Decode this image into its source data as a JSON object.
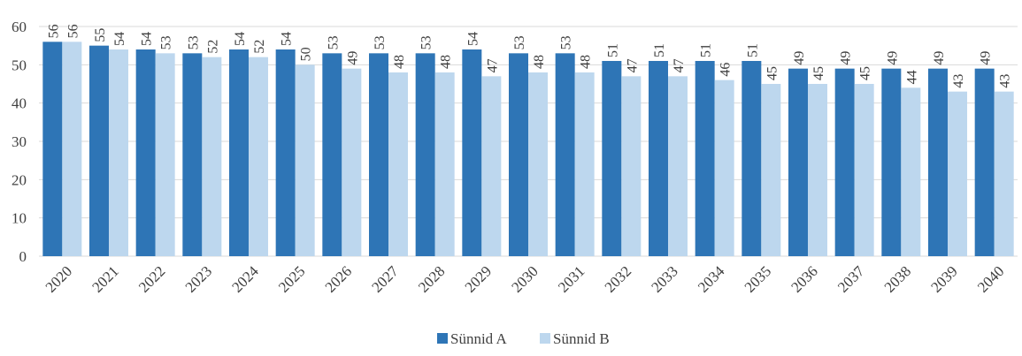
{
  "chart_data": {
    "type": "bar",
    "categories": [
      "2020",
      "2021",
      "2022",
      "2023",
      "2024",
      "2025",
      "2026",
      "2027",
      "2028",
      "2029",
      "2030",
      "2031",
      "2032",
      "2033",
      "2034",
      "2035",
      "2036",
      "2037",
      "2038",
      "2039",
      "2040"
    ],
    "series": [
      {
        "name": "Sünnid A",
        "color": "#2e75b6",
        "values": [
          56,
          55,
          54,
          53,
          54,
          54,
          53,
          53,
          53,
          54,
          53,
          53,
          51,
          51,
          51,
          51,
          49,
          49,
          49,
          49,
          49
        ]
      },
      {
        "name": "Sünnid B",
        "color": "#bdd7ee",
        "values": [
          56,
          54,
          53,
          52,
          52,
          50,
          49,
          48,
          48,
          47,
          48,
          48,
          47,
          47,
          46,
          45,
          45,
          45,
          44,
          43,
          43
        ]
      }
    ],
    "ylim": [
      0,
      60
    ],
    "yticks": [
      0,
      10,
      20,
      30,
      40,
      50,
      60
    ],
    "grid": true,
    "legend": "bottom",
    "data_labels": true
  }
}
